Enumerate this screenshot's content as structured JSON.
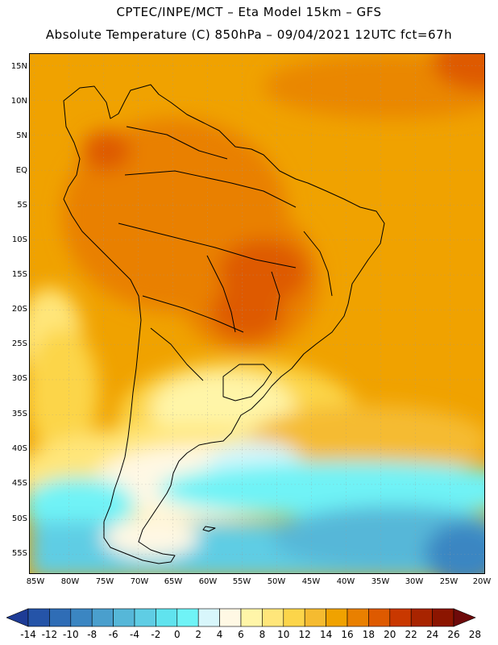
{
  "header": {
    "line1": "CPTEC/INPE/MCT –  Eta Model 15km – GFS",
    "line2": "Absolute Temperature (C) 850hPa – 09/04/2021 12UTC fct=67h"
  },
  "map": {
    "latitude_labels": [
      "15N",
      "10N",
      "5N",
      "EQ",
      "5S",
      "10S",
      "15S",
      "20S",
      "25S",
      "30S",
      "35S",
      "40S",
      "45S",
      "50S",
      "55S"
    ],
    "longitude_labels": [
      "85W",
      "80W",
      "75W",
      "70W",
      "65W",
      "60W",
      "55W",
      "50W",
      "45W",
      "40W",
      "35W",
      "30W",
      "25W",
      "20W"
    ],
    "colorbar_labels": [
      "-14",
      "-12",
      "-10",
      "-8",
      "-6",
      "-4",
      "-2",
      "0",
      "2",
      "4",
      "6",
      "8",
      "10",
      "12",
      "14",
      "16",
      "18",
      "20",
      "22",
      "24",
      "26",
      "28"
    ],
    "colorbar_colors": [
      "#1e3c96",
      "#2554a8",
      "#2f6db6",
      "#3b86c2",
      "#4a9fcd",
      "#56b7d8",
      "#5fcde4",
      "#60e3ee",
      "#6ff3f6",
      "#d8f6fb",
      "#fff8e4",
      "#fff5a8",
      "#ffe67a",
      "#fcd54a",
      "#f5bb30",
      "#f0a200",
      "#e98000",
      "#de5a00",
      "#c93800",
      "#a82400",
      "#8c1500",
      "#6e0a0a"
    ]
  }
}
